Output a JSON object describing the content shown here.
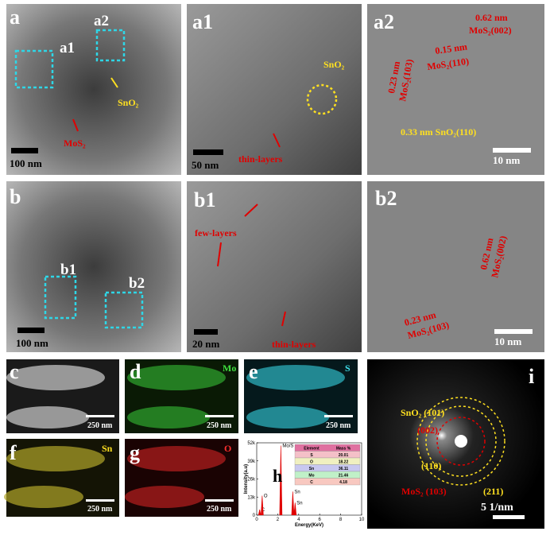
{
  "panels": {
    "a": {
      "label": "a",
      "boxes": [
        "a1",
        "a2"
      ],
      "annotations": [
        "SnO₂",
        "MoS₂"
      ],
      "scale_bar": "100 nm"
    },
    "a1": {
      "label": "a1",
      "annotations": [
        "SnO₂",
        "thin-layers"
      ],
      "scale_bar": "50 nm"
    },
    "a2": {
      "label": "a2",
      "annotations": [
        "0.62 nm",
        "MoS₂(002)",
        "0.15 nm",
        "MoS₂(110)",
        "0.23 nm",
        "MoS₂(103)",
        "0.33 nm SnO₂(110)"
      ],
      "scale_bar": "10 nm"
    },
    "b": {
      "label": "b",
      "boxes": [
        "b1",
        "b2"
      ],
      "scale_bar": "100 nm"
    },
    "b1": {
      "label": "b1",
      "annotations": [
        "few-layers",
        "thin-layers"
      ],
      "scale_bar": "20 nm"
    },
    "b2": {
      "label": "b2",
      "annotations": [
        "0.62 nm",
        "MoS₂(002)",
        "0.23 nm",
        "MoS₂(103)"
      ],
      "scale_bar": "10 nm"
    },
    "c": {
      "label": "c",
      "scale_bar": "250 nm"
    },
    "d": {
      "label": "d",
      "element": "Mo",
      "scale_bar": "250 nm"
    },
    "e": {
      "label": "e",
      "element": "S",
      "scale_bar": "250 nm"
    },
    "f": {
      "label": "f",
      "element": "Sn",
      "scale_bar": "250 nm"
    },
    "g": {
      "label": "g",
      "element": "O",
      "scale_bar": "250 nm"
    },
    "h": {
      "label": "h"
    },
    "i": {
      "label": "i",
      "annotations": [
        "SnO₂ (101)",
        "(002)",
        "(110)",
        "MoS₂ (103)",
        "(211)"
      ],
      "scale_bar": "5 1/nm"
    }
  },
  "eds_spectrum": {
    "type": "spectrum",
    "x_label": "Energy(KeV)",
    "y_label": "Intensity(a.u)",
    "color": "#e00000",
    "xlim": [
      0,
      10
    ],
    "xticks": [
      0,
      2,
      4,
      6,
      8,
      10
    ],
    "ylim": [
      0,
      52000
    ],
    "yticks": [
      0,
      {
        "value": 13000,
        "label": "13k"
      },
      {
        "value": 26000,
        "label": "26k"
      },
      {
        "value": 39000,
        "label": "39k"
      },
      {
        "value": 52000,
        "label": "52k"
      }
    ],
    "peaks": [
      {
        "name": "C",
        "x": 0.28,
        "value": 4000
      },
      {
        "name": "O",
        "x": 0.52,
        "value": 14000
      },
      {
        "name": "Mo/S",
        "x": 2.3,
        "value": 50000
      },
      {
        "name": "Sn",
        "x": 3.44,
        "value": 17000
      },
      {
        "name": "Sn",
        "x": 3.66,
        "value": 9000
      }
    ]
  },
  "eds_table": {
    "header": [
      "Element",
      "Mass %"
    ],
    "rows": [
      [
        "S",
        "20.01"
      ],
      [
        "O",
        "18.22"
      ],
      [
        "Sn",
        "36.11"
      ],
      [
        "Mo",
        "21.46"
      ],
      [
        "C",
        "4.18"
      ]
    ]
  }
}
